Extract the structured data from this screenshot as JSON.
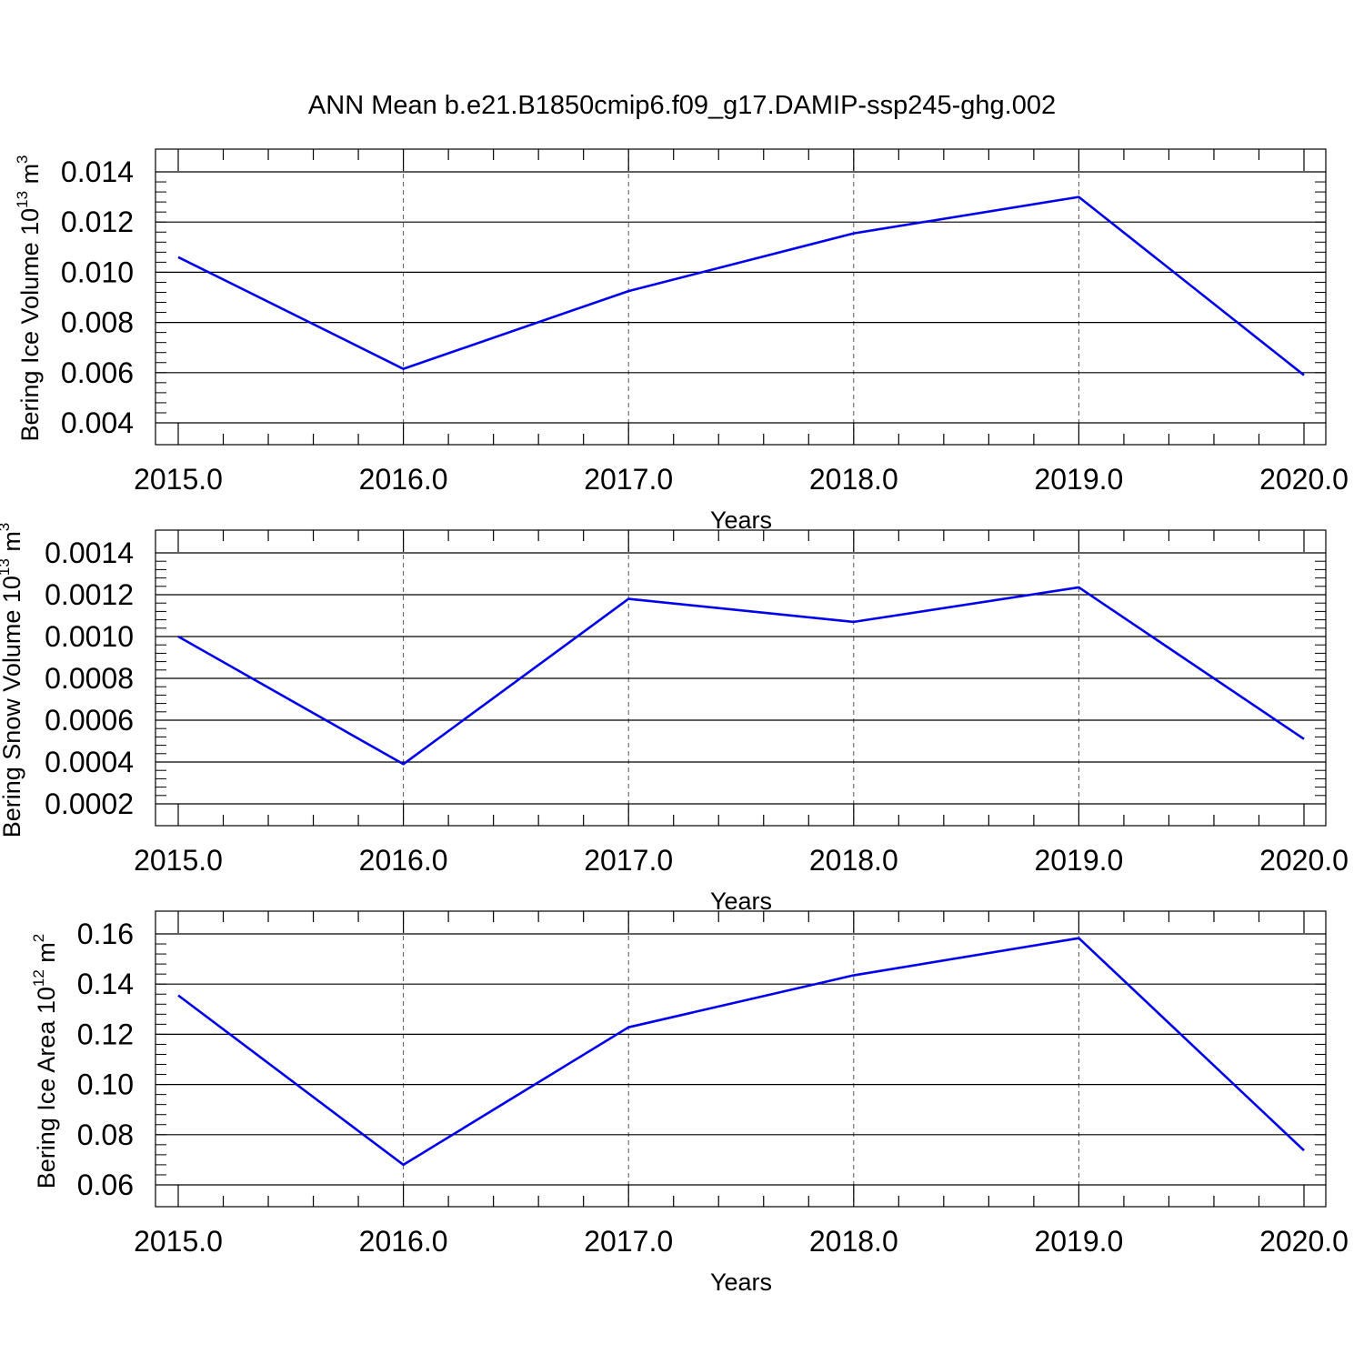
{
  "figure_title": "ANN Mean b.e21.B1850cmip6.f09_g17.DAMIP-ssp245-ghg.002",
  "line_color": "#0000ee",
  "chart_data": [
    {
      "type": "line",
      "xlabel": "Years",
      "ylabel": {
        "text": "Bering Ice Volume 10",
        "exp": "13",
        "unit": " m",
        "unit_exp": "3"
      },
      "xlim": [
        2015.0,
        2020.0
      ],
      "ylim": [
        0.004,
        0.014
      ],
      "xticks": [
        "2015.0",
        "2016.0",
        "2017.0",
        "2018.0",
        "2019.0",
        "2020.0"
      ],
      "yticks": [
        "0.004",
        "0.006",
        "0.008",
        "0.010",
        "0.012",
        "0.014"
      ],
      "ytick_values": [
        0.004,
        0.006,
        0.008,
        0.01,
        0.012,
        0.014
      ],
      "y_minor_step": 0.0004,
      "x": [
        2015,
        2016,
        2017,
        2018,
        2019,
        2020
      ],
      "series": [
        {
          "values": [
            0.0106,
            0.00615,
            0.00925,
            0.01155,
            0.013,
            0.0059
          ]
        }
      ]
    },
    {
      "type": "line",
      "xlabel": "Years",
      "ylabel": {
        "text": "Bering Snow Volume 10",
        "exp": "13",
        "unit": " m",
        "unit_exp": "3"
      },
      "xlim": [
        2015.0,
        2020.0
      ],
      "ylim": [
        0.0002,
        0.0014
      ],
      "xticks": [
        "2015.0",
        "2016.0",
        "2017.0",
        "2018.0",
        "2019.0",
        "2020.0"
      ],
      "yticks": [
        "0.0002",
        "0.0004",
        "0.0006",
        "0.0008",
        "0.0010",
        "0.0012",
        "0.0014"
      ],
      "ytick_values": [
        0.0002,
        0.0004,
        0.0006,
        0.0008,
        0.001,
        0.0012,
        0.0014
      ],
      "y_minor_step": 4e-05,
      "x": [
        2015,
        2016,
        2017,
        2018,
        2019,
        2020
      ],
      "series": [
        {
          "values": [
            0.001,
            0.00039,
            0.00118,
            0.00107,
            0.001235,
            0.00051
          ]
        }
      ]
    },
    {
      "type": "line",
      "xlabel": "Years",
      "ylabel": {
        "text": "Bering Ice Area 10",
        "exp": "12",
        "unit": " m",
        "unit_exp": "2"
      },
      "xlim": [
        2015.0,
        2020.0
      ],
      "ylim": [
        0.06,
        0.16
      ],
      "xticks": [
        "2015.0",
        "2016.0",
        "2017.0",
        "2018.0",
        "2019.0",
        "2020.0"
      ],
      "yticks": [
        "0.06",
        "0.08",
        "0.10",
        "0.12",
        "0.14",
        "0.16"
      ],
      "ytick_values": [
        0.06,
        0.08,
        0.1,
        0.12,
        0.14,
        0.16
      ],
      "y_minor_step": 0.004,
      "x": [
        2015,
        2016,
        2017,
        2018,
        2019,
        2020
      ],
      "series": [
        {
          "values": [
            0.1355,
            0.068,
            0.1228,
            0.1435,
            0.1583,
            0.0737
          ]
        }
      ]
    }
  ]
}
